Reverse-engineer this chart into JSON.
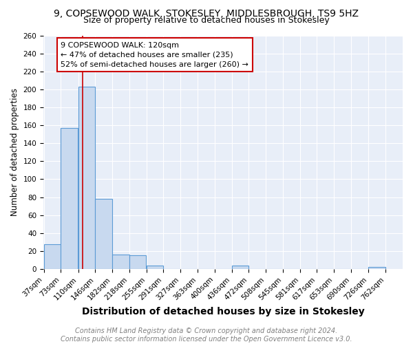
{
  "title": "9, COPSEWOOD WALK, STOKESLEY, MIDDLESBROUGH, TS9 5HZ",
  "subtitle": "Size of property relative to detached houses in Stokesley",
  "xlabel": "Distribution of detached houses by size in Stokesley",
  "ylabel": "Number of detached properties",
  "bar_edges": [
    37,
    73,
    110,
    146,
    182,
    218,
    255,
    291,
    327,
    363,
    400,
    436,
    472,
    508,
    545,
    581,
    617,
    653,
    690,
    726,
    762
  ],
  "bar_heights": [
    28,
    157,
    203,
    78,
    16,
    15,
    4,
    0,
    0,
    0,
    0,
    4,
    0,
    0,
    0,
    0,
    0,
    0,
    0,
    2
  ],
  "bar_color": "#c8d9ef",
  "bar_edge_color": "#5b9bd5",
  "property_size": 120,
  "red_line_color": "#cc0000",
  "annotation_text": "9 COPSEWOOD WALK: 120sqm\n← 47% of detached houses are smaller (235)\n52% of semi-detached houses are larger (260) →",
  "annotation_box_color": "#ffffff",
  "annotation_box_edge_color": "#cc0000",
  "footer_text": "Contains HM Land Registry data © Crown copyright and database right 2024.\nContains public sector information licensed under the Open Government Licence v3.0.",
  "background_color": "#ffffff",
  "plot_bg_color": "#e8eef8",
  "grid_color": "#ffffff",
  "ylim": [
    0,
    260
  ],
  "yticks": [
    0,
    20,
    40,
    60,
    80,
    100,
    120,
    140,
    160,
    180,
    200,
    220,
    240,
    260
  ],
  "title_fontsize": 10,
  "subtitle_fontsize": 9,
  "xlabel_fontsize": 10,
  "ylabel_fontsize": 8.5,
  "tick_fontsize": 7.5,
  "annotation_fontsize": 8,
  "footer_fontsize": 7
}
